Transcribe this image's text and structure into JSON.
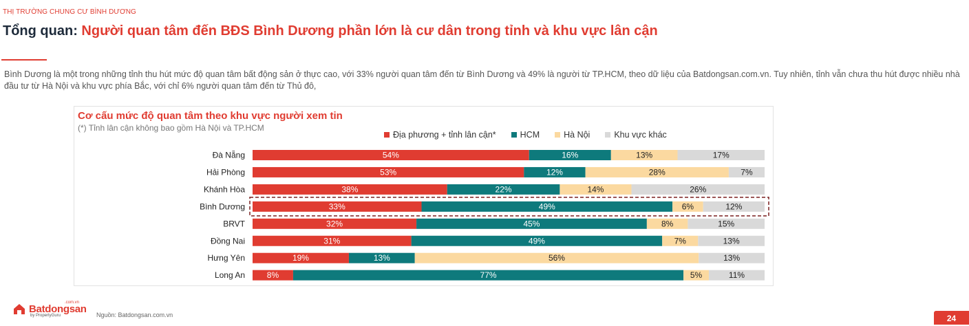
{
  "header": {
    "section": "THỊ TRƯỜNG CHUNG CƯ BÌNH DƯƠNG",
    "title_prefix": "Tổng quan:",
    "title_main": "Người quan tâm đến BĐS Bình Dương phần lớn là cư dân trong tỉnh và khu vực lân cận"
  },
  "description": "Bình Dương là một trong những tỉnh thu hút mức độ quan tâm bất động sản ở thực cao, với 33% người quan tâm đến từ Bình Dương và 49% là người từ TP.HCM, theo dữ liệu của Batdongsan.com.vn. Tuy nhiên, tỉnh vẫn chưa thu hút được nhiều nhà đầu tư từ Hà Nội và khu vực phía Bắc, với chỉ 6% người quan tâm đến từ Thủ đô,",
  "chart_data": {
    "type": "bar",
    "orientation": "horizontal-stacked-100",
    "title": "Cơ cấu mức độ quan tâm theo khu vực người xem tin",
    "subtitle": "(*) Tỉnh lân cận không bao gồm Hà Nội và TP.HCM",
    "legend_position": "top-right",
    "categories": [
      "Đà Nẵng",
      "Hải Phòng",
      "Khánh Hòa",
      "Bình Dương",
      "BRVT",
      "Đồng Nai",
      "Hưng Yên",
      "Long An"
    ],
    "highlight_category": "Bình Dương",
    "series": [
      {
        "name": "Địa phương + tỉnh lân cận*",
        "color": "#e03c31",
        "label_color": "#ffffff",
        "values": [
          54,
          53,
          38,
          33,
          32,
          31,
          19,
          8
        ]
      },
      {
        "name": "HCM",
        "color": "#0e7a7c",
        "label_color": "#ffffff",
        "values": [
          16,
          12,
          22,
          49,
          45,
          49,
          13,
          77
        ]
      },
      {
        "name": "Hà Nội",
        "color": "#fbd9a0",
        "label_color": "#222222",
        "values": [
          13,
          28,
          14,
          6,
          8,
          7,
          56,
          5
        ]
      },
      {
        "name": "Khu vực khác",
        "color": "#d9d9d9",
        "label_color": "#222222",
        "values": [
          17,
          7,
          26,
          12,
          15,
          13,
          13,
          11
        ]
      }
    ],
    "value_suffix": "%"
  },
  "footer": {
    "source": "Nguồn: Batdongsan.com.vn",
    "logo_text": "Batdongsan",
    "logo_sub": "by PropertyGuru",
    "logo_domain": ".com.vn",
    "page_number": "24"
  }
}
